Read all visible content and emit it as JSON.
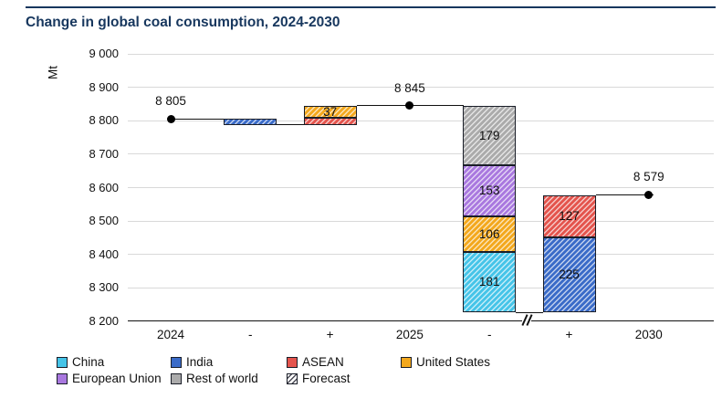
{
  "title": "Change in global coal consumption, 2024-2030",
  "y_axis": {
    "unit": "Mt",
    "ticks": [
      {
        "label": "9 000",
        "value": 9000
      },
      {
        "label": "8 900",
        "value": 8900
      },
      {
        "label": "8 800",
        "value": 8800
      },
      {
        "label": "8 700",
        "value": 8700
      },
      {
        "label": "8 600",
        "value": 8600
      },
      {
        "label": "8 500",
        "value": 8500
      },
      {
        "label": "8 400",
        "value": 8400
      },
      {
        "label": "8 300",
        "value": 8300
      },
      {
        "label": "8 200",
        "value": 8200
      }
    ]
  },
  "x_axis": {
    "labels": [
      "2024",
      "-",
      "+",
      "2025",
      "-",
      "+",
      "2030"
    ]
  },
  "chart_data": {
    "type": "waterfall",
    "title": "Change in global coal consumption, 2024-2030",
    "ylabel": "Mt",
    "ylim": [
      8200,
      9000
    ],
    "grid": true,
    "x_categories": [
      "2024",
      "-",
      "+",
      "2025",
      "-",
      "+",
      "2030"
    ],
    "points": [
      {
        "x_index": 0,
        "value": 8805,
        "label": "8 805"
      },
      {
        "x_index": 3,
        "value": 8845,
        "label": "8 845"
      },
      {
        "x_index": 6,
        "value": 8579,
        "label": "8 579"
      }
    ],
    "bars": [
      {
        "x_index": 1,
        "direction": "decrease",
        "segments": [
          {
            "series": "India",
            "from": 8788,
            "to": 8805,
            "delta": 17,
            "label": ""
          }
        ]
      },
      {
        "x_index": 2,
        "direction": "increase",
        "segments": [
          {
            "series": "ASEAN",
            "from": 8788,
            "to": 8808,
            "delta": 20,
            "label": ""
          },
          {
            "series": "United States",
            "from": 8808,
            "to": 8845,
            "delta": 37,
            "label": "37"
          }
        ]
      },
      {
        "x_index": 4,
        "direction": "decrease",
        "segments": [
          {
            "series": "China",
            "from": 8226,
            "to": 8407,
            "delta": 181,
            "label": "181"
          },
          {
            "series": "United States",
            "from": 8407,
            "to": 8513,
            "delta": 106,
            "label": "106"
          },
          {
            "series": "European Union",
            "from": 8513,
            "to": 8666,
            "delta": 153,
            "label": "153"
          },
          {
            "series": "Rest of world",
            "from": 8666,
            "to": 8845,
            "delta": 179,
            "label": "179"
          }
        ]
      },
      {
        "x_index": 5,
        "direction": "increase",
        "segments": [
          {
            "series": "India",
            "from": 8226,
            "to": 8451,
            "delta": 225,
            "label": "225"
          },
          {
            "series": "ASEAN",
            "from": 8451,
            "to": 8578,
            "delta": 127,
            "label": "127"
          }
        ]
      }
    ],
    "connectors": [
      {
        "value": 8805,
        "from": 0,
        "to": 1
      },
      {
        "value": 8788,
        "from": 1,
        "to": 2
      },
      {
        "value": 8845,
        "from": 2,
        "to": 4
      },
      {
        "value": 8226,
        "from": 4,
        "to": 5
      },
      {
        "value": 8578,
        "from": 5,
        "to": 6
      }
    ],
    "series_colors": {
      "China": "#45C4E8",
      "India": "#3A6BC8",
      "ASEAN": "#E4544D",
      "United States": "#F3A81D",
      "European Union": "#A978DF",
      "Rest of world": "#ABABAB"
    },
    "forecast_hatch_on_all_bars": true,
    "axis_break_between_indices": [
      4,
      5
    ],
    "legend_position": "bottom"
  },
  "legend": {
    "items": [
      {
        "label": "China",
        "series": "China",
        "hatch": false
      },
      {
        "label": "India",
        "series": "India",
        "hatch": false
      },
      {
        "label": "ASEAN",
        "series": "ASEAN",
        "hatch": false
      },
      {
        "label": "United States",
        "series": "United States",
        "hatch": false
      },
      {
        "label": "European Union",
        "series": "European Union",
        "hatch": false
      },
      {
        "label": "Rest of world",
        "series": "Rest of world",
        "hatch": false
      },
      {
        "label": "Forecast",
        "series": "Forecast",
        "hatch": true
      }
    ]
  },
  "colors": {
    "title": "#17375E",
    "axis": "#111111",
    "gridline": "#D9D9D9",
    "hatch_line_on_white": "#4A4A55"
  }
}
